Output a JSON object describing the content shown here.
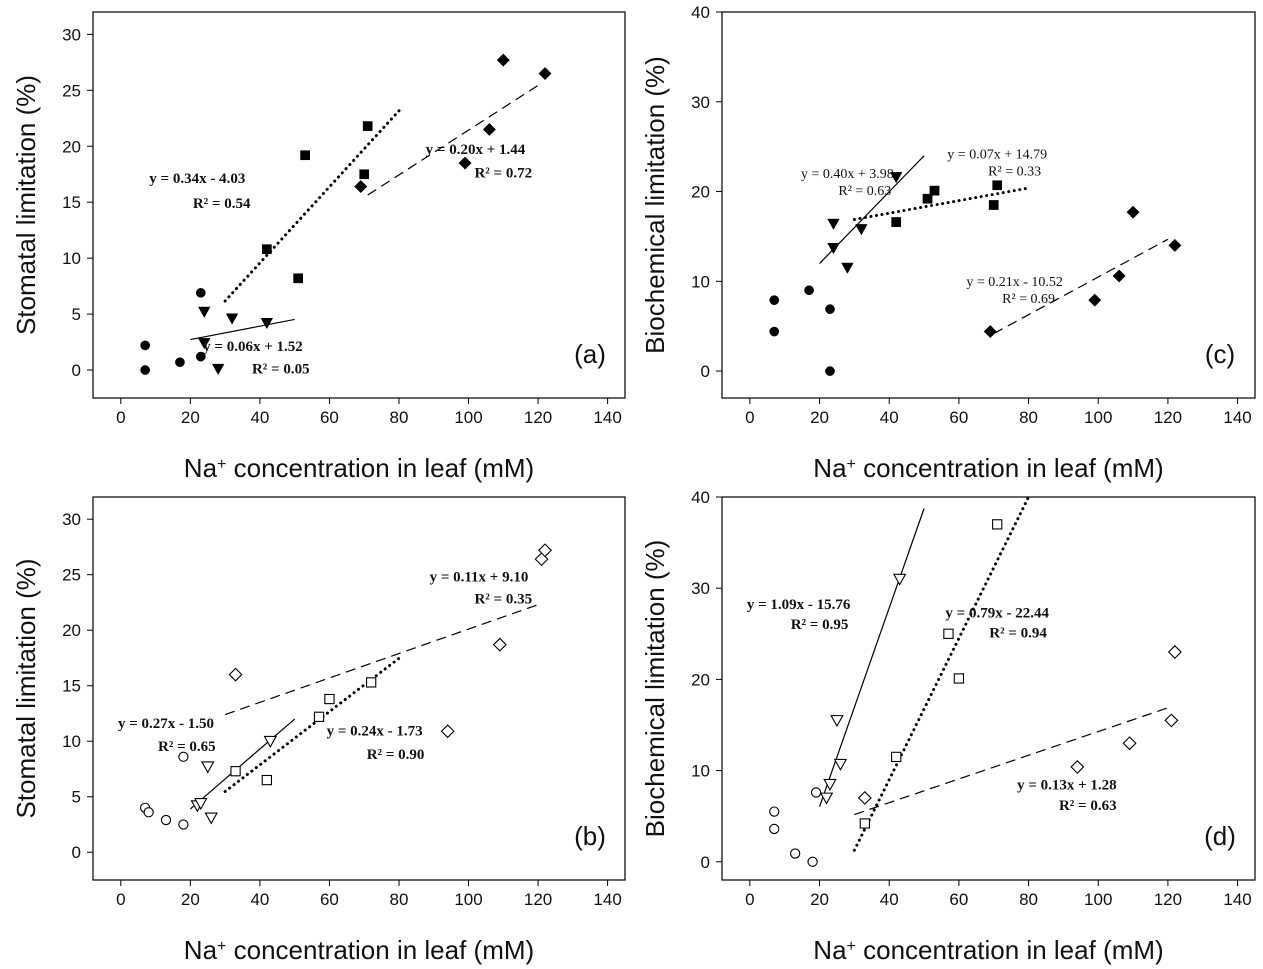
{
  "chart_data": [
    {
      "type": "scatter",
      "panel_label": "(a)",
      "xlabel": "Na+ concentration in leaf (mM)",
      "xlabel_main": "Na",
      "xlabel_sup": "+",
      "xlabel_rest": " concentration in leaf (mM)",
      "ylabel": "Stomatal limitation (%)",
      "xlim": [
        -8,
        145
      ],
      "ylim": [
        -2.5,
        32
      ],
      "xticks": [
        0,
        20,
        40,
        60,
        80,
        100,
        120,
        140
      ],
      "yticks": [
        0,
        5,
        10,
        15,
        20,
        25,
        30
      ],
      "series": [
        {
          "marker": "circle",
          "filled": true,
          "x": [
            7,
            7,
            17,
            23,
            23
          ],
          "y": [
            0,
            2.2,
            0.7,
            6.9,
            1.2
          ]
        },
        {
          "marker": "triangle-down",
          "filled": true,
          "x": [
            24,
            24,
            28,
            32,
            42
          ],
          "y": [
            5.2,
            2.4,
            0.1,
            4.6,
            4.2
          ],
          "fit": {
            "x": [
              20,
              50
            ],
            "y": [
              2.72,
              4.52
            ],
            "dash": "solid"
          }
        },
        {
          "marker": "square",
          "filled": true,
          "x": [
            42,
            51,
            53,
            70,
            71
          ],
          "y": [
            10.8,
            8.2,
            19.2,
            17.5,
            21.8
          ],
          "fit": {
            "x": [
              30,
              80
            ],
            "y": [
              6.17,
              23.17
            ],
            "dash": "dotted"
          }
        },
        {
          "marker": "diamond",
          "filled": true,
          "x": [
            69,
            99,
            106,
            110,
            122
          ],
          "y": [
            16.4,
            18.5,
            21.5,
            27.7,
            26.5
          ],
          "fit": {
            "x": [
              71,
              120
            ],
            "y": [
              15.64,
              25.44
            ],
            "dash": "dashed"
          }
        }
      ],
      "annotations": [
        {
          "text": "y = 0.34x - 4.03",
          "x": 22,
          "y": 16.7
        },
        {
          "text": "R² = 0.54",
          "x": 29,
          "y": 14.5
        },
        {
          "text": "y = 0.20x + 1.44",
          "x": 102,
          "y": 19.3
        },
        {
          "text": "R² = 0.72",
          "x": 110,
          "y": 17.2
        },
        {
          "text": "y = 0.06x + 1.52",
          "x": 38,
          "y": 1.7
        },
        {
          "text": "R² = 0.05",
          "x": 46,
          "y": -0.3
        }
      ]
    },
    {
      "type": "scatter",
      "panel_label": "(b)",
      "xlabel": "Na+ concentration in leaf (mM)",
      "xlabel_main": "Na",
      "xlabel_sup": "+",
      "xlabel_rest": " concentration in leaf (mM)",
      "ylabel": "Stomatal limitation (%)",
      "xlim": [
        -8,
        145
      ],
      "ylim": [
        -2.5,
        32
      ],
      "xticks": [
        0,
        20,
        40,
        60,
        80,
        100,
        120,
        140
      ],
      "yticks": [
        0,
        5,
        10,
        15,
        20,
        25,
        30
      ],
      "series": [
        {
          "marker": "circle",
          "filled": false,
          "x": [
            7,
            8,
            13,
            18,
            18
          ],
          "y": [
            4.0,
            3.6,
            2.9,
            2.5,
            8.6
          ]
        },
        {
          "marker": "triangle-down",
          "filled": false,
          "x": [
            22,
            23,
            25,
            26,
            43
          ],
          "y": [
            4.2,
            4.4,
            7.7,
            3.1,
            10.0
          ],
          "fit": {
            "x": [
              20,
              50
            ],
            "y": [
              3.9,
              12.0
            ],
            "dash": "solid"
          }
        },
        {
          "marker": "square",
          "filled": false,
          "x": [
            33,
            42,
            57,
            60,
            72
          ],
          "y": [
            7.3,
            6.5,
            12.2,
            13.8,
            15.3
          ],
          "fit": {
            "x": [
              30,
              80
            ],
            "y": [
              5.47,
              17.47
            ],
            "dash": "dotted"
          }
        },
        {
          "marker": "diamond",
          "filled": false,
          "x": [
            33,
            94,
            109,
            121,
            122
          ],
          "y": [
            16.0,
            10.9,
            18.7,
            26.4,
            27.2
          ],
          "fit": {
            "x": [
              30,
              120
            ],
            "y": [
              12.4,
              22.3
            ],
            "dash": "dashed"
          }
        }
      ],
      "annotations": [
        {
          "text": "y = 0.11x + 9.10",
          "x": 103,
          "y": 24.4
        },
        {
          "text": "R² = 0.35",
          "x": 110,
          "y": 22.4
        },
        {
          "text": "y = 0.27x - 1.50",
          "x": 13,
          "y": 11.2
        },
        {
          "text": "R² = 0.65",
          "x": 19,
          "y": 9.1
        },
        {
          "text": "y = 0.24x - 1.73",
          "x": 73,
          "y": 10.5
        },
        {
          "text": "R² = 0.90",
          "x": 79,
          "y": 8.4
        }
      ]
    },
    {
      "type": "scatter",
      "panel_label": "(c)",
      "xlabel": "Na+ concentration in leaf (mM)",
      "xlabel_main": "Na",
      "xlabel_sup": "+",
      "xlabel_rest": " concentration in leaf (mM)",
      "ylabel": "Biochemical limitation (%)",
      "xlim": [
        -8,
        145
      ],
      "ylim": [
        -3,
        40
      ],
      "xticks": [
        0,
        20,
        40,
        60,
        80,
        100,
        120,
        140
      ],
      "yticks": [
        0,
        10,
        20,
        30,
        40
      ],
      "series": [
        {
          "marker": "circle",
          "filled": true,
          "x": [
            7,
            7,
            17,
            23,
            23
          ],
          "y": [
            7.9,
            4.4,
            9.0,
            6.9,
            0.0
          ]
        },
        {
          "marker": "triangle-down",
          "filled": true,
          "x": [
            24,
            24,
            28,
            32,
            42
          ],
          "y": [
            16.4,
            13.7,
            11.5,
            15.8,
            21.6
          ],
          "fit": {
            "x": [
              20,
              50
            ],
            "y": [
              11.98,
              23.98
            ],
            "dash": "solid"
          }
        },
        {
          "marker": "square",
          "filled": true,
          "x": [
            42,
            51,
            53,
            70,
            71
          ],
          "y": [
            16.6,
            19.2,
            20.1,
            18.5,
            20.7
          ],
          "fit": {
            "x": [
              30,
              80
            ],
            "y": [
              16.89,
              20.39
            ],
            "dash": "dotted"
          }
        },
        {
          "marker": "diamond",
          "filled": true,
          "x": [
            69,
            99,
            106,
            110,
            122
          ],
          "y": [
            4.4,
            7.9,
            10.6,
            17.7,
            14.0
          ],
          "fit": {
            "x": [
              70,
              120
            ],
            "y": [
              4.18,
              14.68
            ],
            "dash": "dashed"
          }
        }
      ],
      "annotations": [
        {
          "text": "y = 0.40x + 3.98",
          "x": 28,
          "y": 21.5,
          "light": true
        },
        {
          "text": "R² = 0.63",
          "x": 33,
          "y": 19.6,
          "light": true
        },
        {
          "text": "y = 0.07x + 14.79",
          "x": 71,
          "y": 23.7,
          "light": true
        },
        {
          "text": "R² = 0.33",
          "x": 76,
          "y": 21.8,
          "light": true
        },
        {
          "text": "y = 0.21x - 10.52",
          "x": 76,
          "y": 9.5,
          "light": true
        },
        {
          "text": "R² = 0.69",
          "x": 80,
          "y": 7.6,
          "light": true
        }
      ]
    },
    {
      "type": "scatter",
      "panel_label": "(d)",
      "xlabel": "Na+ concentration in leaf (mM)",
      "xlabel_main": "Na",
      "xlabel_sup": "+",
      "xlabel_rest": " concentration in leaf (mM)",
      "ylabel": "Biochemical limitation (%)",
      "xlim": [
        -8,
        145
      ],
      "ylim": [
        -2,
        40
      ],
      "xticks": [
        0,
        20,
        40,
        60,
        80,
        100,
        120,
        140
      ],
      "yticks": [
        0,
        10,
        20,
        30,
        40
      ],
      "series": [
        {
          "marker": "circle",
          "filled": false,
          "x": [
            7,
            7,
            13,
            18,
            19
          ],
          "y": [
            5.5,
            3.6,
            0.9,
            0.0,
            7.6
          ]
        },
        {
          "marker": "triangle-down",
          "filled": false,
          "x": [
            22,
            23,
            25,
            26,
            43
          ],
          "y": [
            7.0,
            8.5,
            15.5,
            10.7,
            31.0
          ],
          "fit": {
            "x": [
              20,
              50
            ],
            "y": [
              6.04,
              38.74
            ],
            "dash": "solid"
          }
        },
        {
          "marker": "square",
          "filled": false,
          "x": [
            33,
            42,
            57,
            60,
            71
          ],
          "y": [
            4.2,
            11.5,
            25.0,
            20.1,
            37.0
          ],
          "fit": {
            "x": [
              30,
              80
            ],
            "y": [
              1.26,
              40.0
            ],
            "dash": "dotted"
          }
        },
        {
          "marker": "diamond",
          "filled": false,
          "x": [
            33,
            94,
            109,
            121,
            122
          ],
          "y": [
            7.0,
            10.4,
            13.0,
            15.5,
            23.0
          ],
          "fit": {
            "x": [
              30,
              120
            ],
            "y": [
              5.18,
              16.88
            ],
            "dash": "dashed"
          }
        }
      ],
      "annotations": [
        {
          "text": "y = 1.09x - 15.76",
          "x": 14,
          "y": 27.7
        },
        {
          "text": "R² = 0.95",
          "x": 20,
          "y": 25.5
        },
        {
          "text": "y = 0.79x - 22.44",
          "x": 71,
          "y": 26.8
        },
        {
          "text": "R² = 0.94",
          "x": 77,
          "y": 24.6
        },
        {
          "text": "y = 0.13x + 1.28",
          "x": 91,
          "y": 7.9
        },
        {
          "text": "R² = 0.63",
          "x": 97,
          "y": 5.7
        }
      ]
    }
  ]
}
